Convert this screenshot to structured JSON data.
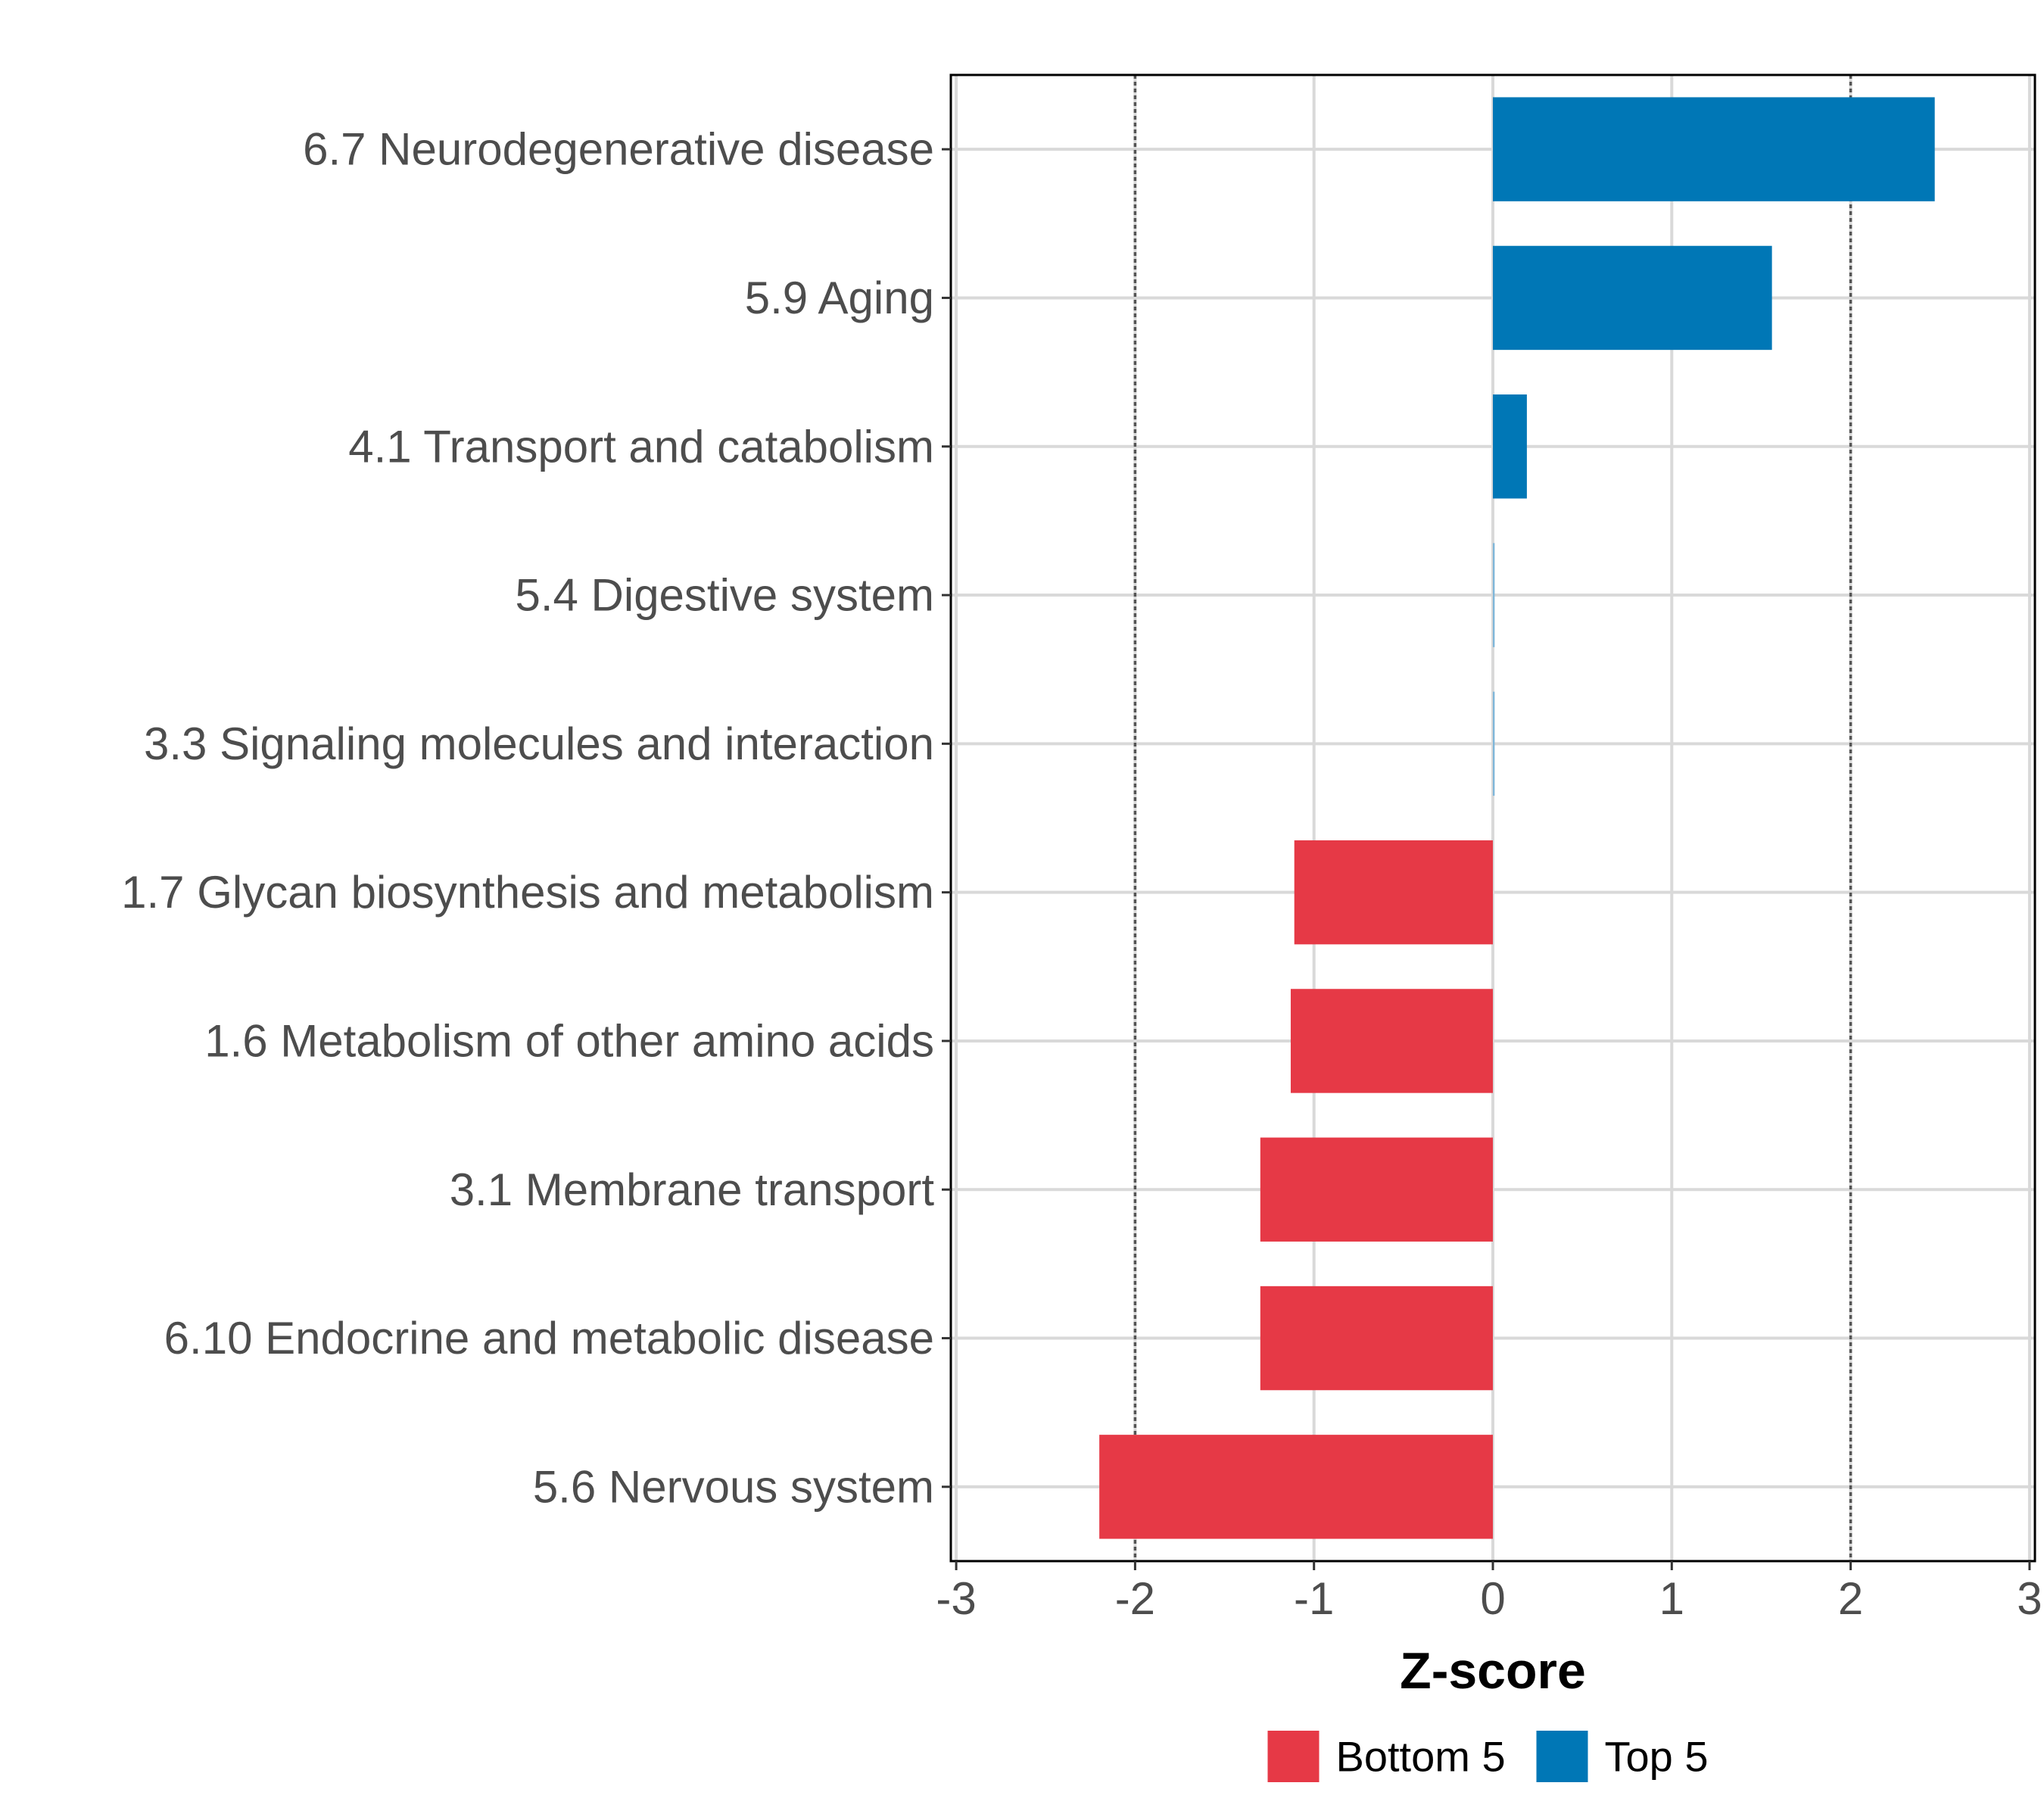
{
  "chart_data": {
    "type": "bar",
    "orientation": "horizontal",
    "xlabel": "Z-score",
    "ylabel": "",
    "xlim": [
      -3,
      3
    ],
    "xticks": [
      -3,
      -2,
      -1,
      0,
      1,
      2,
      3
    ],
    "xtick_labels": [
      "-3",
      "-2",
      "-1",
      "0",
      "1",
      "2",
      "3"
    ],
    "reference_lines": [
      -2,
      2
    ],
    "grid": true,
    "categories": [
      "6.7 Neurodegenerative disease",
      "5.9 Aging",
      "4.1 Transport and catabolism",
      "5.4 Digestive system",
      "3.3 Signaling molecules and interaction",
      "1.7 Glycan biosynthesis and metabolism",
      "1.6 Metabolism of other amino acids",
      "3.1 Membrane transport",
      "6.10 Endocrine and metabolic disease",
      "5.6 Nervous system"
    ],
    "values": [
      2.47,
      1.56,
      0.19,
      0.01,
      0.01,
      -1.11,
      -1.13,
      -1.3,
      -1.3,
      -2.2
    ],
    "groups": [
      "Top 5",
      "Top 5",
      "Top 5",
      "Top 5",
      "Top 5",
      "Bottom 5",
      "Bottom 5",
      "Bottom 5",
      "Bottom 5",
      "Bottom 5"
    ],
    "legend": {
      "placement": "bottom",
      "entries": [
        {
          "label": "Bottom 5",
          "color": "#e63946"
        },
        {
          "label": "Top 5",
          "color": "#0077b6"
        }
      ]
    }
  }
}
